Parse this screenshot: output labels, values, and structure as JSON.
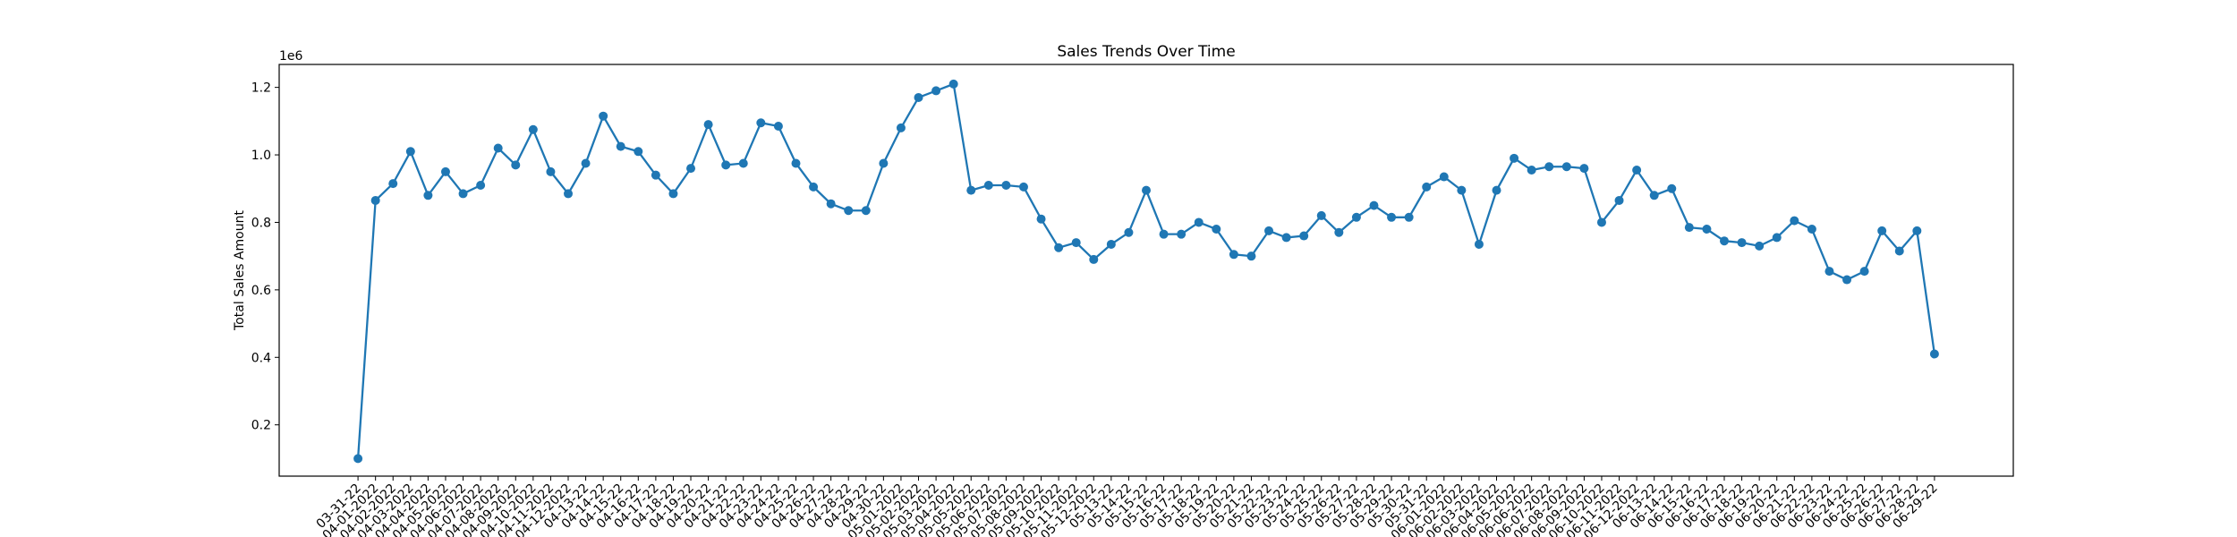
{
  "chart_data": {
    "type": "line",
    "title": "Sales Trends Over Time",
    "y_label": "Total Sales Amount",
    "y_offset_label": "1e6",
    "categories": [
      "03-31-22",
      "04-01-2022",
      "04-02-2022",
      "04-03-2022",
      "04-04-2022",
      "04-05-2022",
      "04-06-2022",
      "04-07-2022",
      "04-08-2022",
      "04-09-2022",
      "04-10-2022",
      "04-11-2022",
      "04-12-2022",
      "04-13-22",
      "04-14-22",
      "04-15-22",
      "04-16-22",
      "04-17-22",
      "04-18-22",
      "04-19-22",
      "04-20-22",
      "04-21-22",
      "04-22-22",
      "04-23-22",
      "04-24-22",
      "04-25-22",
      "04-26-22",
      "04-27-22",
      "04-28-22",
      "04-29-22",
      "04-30-22",
      "05-01-2022",
      "05-02-2022",
      "05-03-2022",
      "05-04-2022",
      "05-05-2022",
      "05-06-2022",
      "05-07-2022",
      "05-08-2022",
      "05-09-2022",
      "05-10-2022",
      "05-11-2022",
      "05-12-2022",
      "05-13-22",
      "05-14-22",
      "05-15-22",
      "05-16-22",
      "05-17-22",
      "05-18-22",
      "05-19-22",
      "05-20-22",
      "05-21-22",
      "05-22-22",
      "05-23-22",
      "05-24-22",
      "05-25-22",
      "05-26-22",
      "05-27-22",
      "05-28-22",
      "05-29-22",
      "05-30-22",
      "05-31-22",
      "06-01-2022",
      "06-02-2022",
      "06-03-2022",
      "06-04-2022",
      "06-05-2022",
      "06-06-2022",
      "06-07-2022",
      "06-08-2022",
      "06-09-2022",
      "06-10-2022",
      "06-11-2022",
      "06-12-2022",
      "06-13-22",
      "06-14-22",
      "06-15-22",
      "06-16-22",
      "06-17-22",
      "06-18-22",
      "06-19-22",
      "06-20-22",
      "06-21-22",
      "06-22-22",
      "06-23-22",
      "06-24-22",
      "06-25-22",
      "06-26-22",
      "06-27-22",
      "06-28-22",
      "06-29-22"
    ],
    "series": [
      {
        "name": "Total Sales Amount",
        "color": "#1f77b4",
        "values": [
          0.1,
          0.865,
          0.915,
          1.01,
          0.88,
          0.95,
          0.885,
          0.91,
          1.02,
          0.97,
          1.075,
          0.95,
          0.885,
          0.975,
          1.115,
          1.025,
          1.01,
          0.94,
          0.885,
          0.96,
          1.09,
          0.97,
          0.975,
          1.095,
          1.085,
          0.975,
          0.905,
          0.855,
          0.835,
          0.835,
          0.975,
          1.08,
          1.17,
          1.19,
          1.21,
          0.895,
          0.91,
          0.91,
          0.905,
          0.81,
          0.725,
          0.74,
          0.69,
          0.735,
          0.77,
          0.895,
          0.765,
          0.765,
          0.8,
          0.78,
          0.705,
          0.7,
          0.775,
          0.755,
          0.76,
          0.82,
          0.77,
          0.815,
          0.85,
          0.815,
          0.815,
          0.905,
          0.935,
          0.895,
          0.735,
          0.895,
          0.99,
          0.955,
          0.965,
          0.965,
          0.96,
          0.8,
          0.865,
          0.955,
          0.88,
          0.9,
          0.785,
          0.78,
          0.745,
          0.74,
          0.73,
          0.755,
          0.805,
          0.78,
          0.655,
          0.63,
          0.655,
          0.775,
          0.715,
          0.775,
          0.41
        ]
      }
    ],
    "ylim": [
      0.048,
      1.268
    ],
    "yticks": [
      0.2,
      0.4,
      0.6,
      0.8,
      {
        "value": 1.0,
        "label": "1.0"
      },
      1.2
    ],
    "grid": false,
    "markers": true
  }
}
